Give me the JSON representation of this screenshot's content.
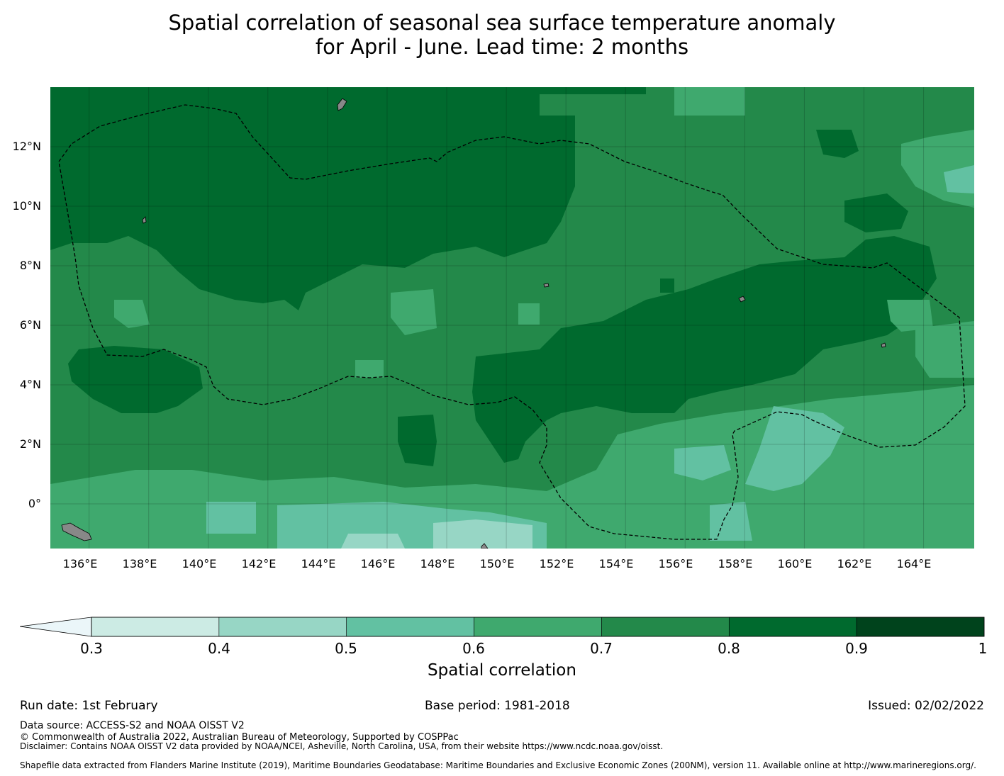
{
  "title": {
    "line1": "Spatial correlation of seasonal sea surface temperature anomaly",
    "line2": "for April - June. Lead time: 2 months"
  },
  "map": {
    "lat_labels": [
      "12°N",
      "10°N",
      "8°N",
      "6°N",
      "4°N",
      "2°N",
      "0°"
    ],
    "lon_labels": [
      "136°E",
      "138°E",
      "140°E",
      "142°E",
      "144°E",
      "146°E",
      "148°E",
      "150°E",
      "152°E",
      "154°E",
      "156°E",
      "158°E",
      "160°E",
      "162°E",
      "164°E"
    ],
    "extent": {
      "lon_min": 134.7,
      "lon_max": 165.7,
      "lat_min": -1.5,
      "lat_max": 14.0
    },
    "colors": {
      "c05": "#62c1a2",
      "c06": "#3fa96e",
      "c07": "#23894a",
      "c08": "#006a2e",
      "land": "#888888",
      "boundary": "#000000"
    }
  },
  "colorbar": {
    "label": "Spatial correlation",
    "ticks": [
      "0.3",
      "0.4",
      "0.5",
      "0.6",
      "0.7",
      "0.8",
      "0.9",
      "1"
    ],
    "levels": [
      0.3,
      0.4,
      0.5,
      0.6,
      0.7,
      0.8,
      0.9,
      1.0
    ],
    "extend_color": "#ebf6f9",
    "colors": [
      "#ccebe4",
      "#97d6c5",
      "#62c1a2",
      "#3fa96e",
      "#23894a",
      "#006a2e",
      "#00431c"
    ]
  },
  "footer": {
    "run_date": "Run date: 1st February",
    "base_period": "Base period: 1981-2018",
    "issued": "Issued: 02/02/2022",
    "data_source": "Data source: ACCESS-S2 and NOAA OISST V2",
    "copyright": "© Commonwealth of Australia 2022, Australian Bureau of Meteorology, Supported by COSPPac",
    "disclaimer": "Disclaimer: Contains NOAA OISST V2 data provided by NOAA/NCEI, Asheville, North Carolina, USA, from their website https://www.ncdc.noaa.gov/oisst.",
    "shapefile": "Shapefile data extracted from Flanders Marine Institute (2019), Maritime Boundaries Geodatabase: Maritime Boundaries and Exclusive Economic Zones (200NM), version 11. Available online at http://www.marineregions.org/."
  }
}
